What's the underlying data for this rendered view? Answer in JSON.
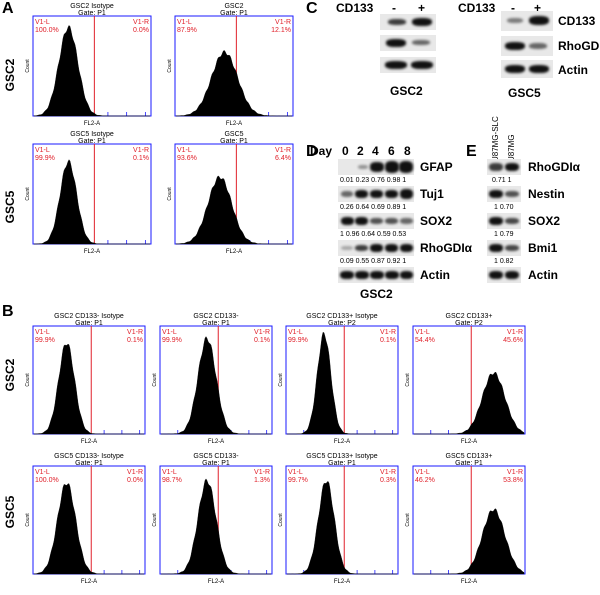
{
  "panels": {
    "A": "A",
    "B": "B",
    "C": "C",
    "D": "D",
    "E": "E"
  },
  "row_labels": {
    "a_top": "GSC2",
    "a_bottom": "GSC5",
    "b_top": "GSC2",
    "b_bottom": "GSC5"
  },
  "flow": {
    "y_label": "Count",
    "x_label": "FL2-A",
    "left_gate": "V1-L",
    "right_gate": "V1-R",
    "a_plots": [
      {
        "title": "GSC2 Isotype",
        "gate": "Gate: P1",
        "left_pct": "100.0%",
        "right_pct": "0.0%"
      },
      {
        "title": "GSC2",
        "gate": "Gate: P1",
        "left_pct": "87.9%",
        "right_pct": "12.1%"
      },
      {
        "title": "GSC5 Isotype",
        "gate": "Gate: P1",
        "left_pct": "99.9%",
        "right_pct": "0.1%"
      },
      {
        "title": "GSC5",
        "gate": "Gate: P1",
        "left_pct": "93.6%",
        "right_pct": "6.4%"
      }
    ],
    "b_plots": [
      {
        "title": "GSC2 CD133- Isotype",
        "gate": "Gate: P1",
        "left_pct": "99.9%",
        "right_pct": "0.1%"
      },
      {
        "title": "GSC2 CD133-",
        "gate": "Gate: P1",
        "left_pct": "99.9%",
        "right_pct": "0.1%"
      },
      {
        "title": "GSC2 CD133+ Isotype",
        "gate": "Gate: P2",
        "left_pct": "99.9%",
        "right_pct": "0.1%"
      },
      {
        "title": "GSC2 CD133+",
        "gate": "Gate: P2",
        "left_pct": "54.4%",
        "right_pct": "45.6%"
      },
      {
        "title": "GSC5 CD133- Isotype",
        "gate": "Gate: P1",
        "left_pct": "100.0%",
        "right_pct": "0.0%"
      },
      {
        "title": "GSC5 CD133-",
        "gate": "Gate: P1",
        "left_pct": "98.7%",
        "right_pct": "1.3%"
      },
      {
        "title": "GSC5 CD133+ Isotype",
        "gate": "Gate: P1",
        "left_pct": "99.7%",
        "right_pct": "0.3%"
      },
      {
        "title": "GSC5 CD133+",
        "gate": "Gate: P1",
        "left_pct": "46.2%",
        "right_pct": "53.8%"
      }
    ]
  },
  "blot_c": {
    "header": "CD133",
    "minus": "-",
    "plus": "+",
    "gsc2_name": "GSC2",
    "gsc5_name": "GSC5",
    "labels": [
      "CD133",
      "RhoGDIα",
      "Actin"
    ]
  },
  "blot_d": {
    "day_label": "Day",
    "days": [
      "0",
      "2",
      "4",
      "6",
      "8"
    ],
    "rows": [
      {
        "label": "GFAP",
        "values": "0.01 0.23  0.76 0.98   1"
      },
      {
        "label": "Tuj1",
        "values": "0.26 0.64  0.69 0.89   1"
      },
      {
        "label": "SOX2",
        "values": "1   0.96 0.64  0.59 0.53"
      },
      {
        "label": "RhoGDIα",
        "values": "0.09 0.55  0.87 0.92   1"
      },
      {
        "label": "Actin",
        "values": ""
      }
    ],
    "cell_name": "GSC2"
  },
  "blot_e": {
    "lanes": [
      "U87MG-SLC",
      "U87MG"
    ],
    "rows": [
      {
        "label": "RhoGDIα",
        "values": "0.71     1"
      },
      {
        "label": "Nestin",
        "values": "1      0.70"
      },
      {
        "label": "SOX2",
        "values": "1      0.79"
      },
      {
        "label": "Bmi1",
        "values": "1      0.82"
      },
      {
        "label": "Actin",
        "values": ""
      }
    ]
  }
}
